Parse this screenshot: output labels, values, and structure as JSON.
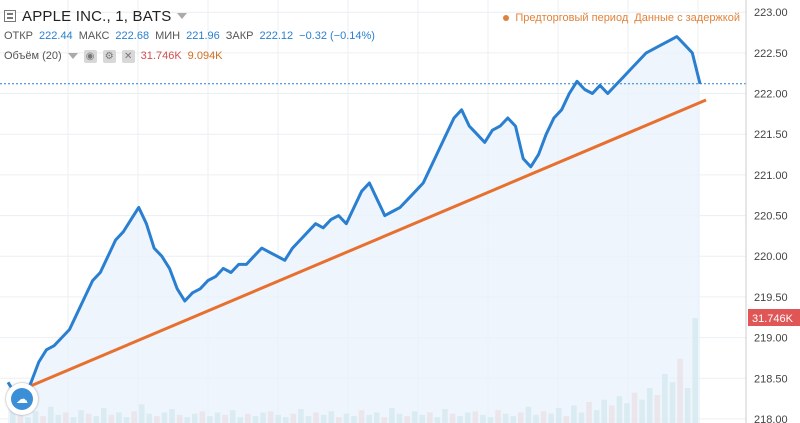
{
  "header": {
    "symbol": "APPLE INC., 1, BATS",
    "open_label": "ОТКР",
    "open": "222.44",
    "high_label": "МАКС",
    "high": "222.68",
    "low_label": "МИН",
    "low": "221.96",
    "close_label": "ЗАКР",
    "close": "222.12",
    "change": "−0.32 (−0.14%)"
  },
  "volume": {
    "label": "Объём (20)",
    "v1": "31.746K",
    "v2": "9.094K"
  },
  "notice": {
    "premarket": "Предторговый период",
    "delayed": "Данные с задержкой"
  },
  "badges": {
    "volume": "31.746K"
  },
  "colors": {
    "price": "#2a7fd0",
    "trend": "#e8702f",
    "grid": "#eceff2",
    "vol_up": "#7fc2c2",
    "vol_down": "#e99a9a"
  },
  "chart_data": {
    "type": "line",
    "title": "APPLE INC., 1, BATS",
    "y_ticks": [
      "223.00",
      "222.50",
      "222.00",
      "221.50",
      "221.00",
      "220.50",
      "220.00",
      "219.50",
      "219.00",
      "218.50",
      "218.00"
    ],
    "ylim": [
      217.95,
      223.15
    ],
    "series": [
      {
        "values": [
          218.45,
          218.3,
          218.25,
          218.45,
          218.7,
          218.85,
          218.9,
          219.0,
          219.1,
          219.3,
          219.5,
          219.7,
          219.8,
          220.0,
          220.2,
          220.3,
          220.45,
          220.6,
          220.4,
          220.1,
          220.0,
          219.85,
          219.6,
          219.45,
          219.55,
          219.6,
          219.7,
          219.75,
          219.85,
          219.8,
          219.9,
          219.9,
          220.0,
          220.1,
          220.05,
          220.0,
          219.95,
          220.1,
          220.2,
          220.3,
          220.4,
          220.35,
          220.45,
          220.5,
          220.4,
          220.6,
          220.8,
          220.9,
          220.7,
          220.5,
          220.55,
          220.6,
          220.7,
          220.8,
          220.9,
          221.1,
          221.3,
          221.5,
          221.7,
          221.8,
          221.6,
          221.5,
          221.4,
          221.55,
          221.6,
          221.7,
          221.6,
          221.2,
          221.1,
          221.25,
          221.5,
          221.7,
          221.8,
          222.0,
          222.15,
          222.05,
          222.0,
          222.1,
          222.0,
          222.1,
          222.2,
          222.3,
          222.4,
          222.5,
          222.55,
          222.6,
          222.65,
          222.7,
          222.6,
          222.5,
          222.12
        ]
      }
    ],
    "trend_start": 218.35,
    "trend_end": 221.92,
    "current_price": 222.12,
    "volume_values": [
      1.2,
      0.8,
      0.5,
      1.0,
      0.6,
      1.4,
      0.7,
      0.9,
      0.5,
      1.1,
      0.8,
      0.6,
      1.3,
      0.7,
      0.9,
      0.5,
      1.0,
      1.6,
      0.8,
      0.6,
      0.9,
      1.2,
      0.7,
      0.5,
      0.8,
      1.0,
      0.6,
      0.9,
      0.7,
      1.1,
      0.5,
      0.8,
      0.6,
      0.9,
      1.0,
      0.7,
      0.5,
      0.8,
      1.2,
      0.6,
      0.9,
      0.7,
      1.0,
      0.5,
      0.8,
      0.6,
      1.1,
      0.7,
      0.9,
      0.5,
      1.3,
      0.8,
      0.6,
      1.0,
      0.7,
      0.9,
      0.5,
      1.2,
      0.8,
      0.6,
      0.9,
      1.0,
      0.7,
      0.5,
      1.1,
      0.8,
      0.6,
      0.9,
      1.4,
      0.7,
      1.0,
      0.8,
      1.3,
      0.6,
      1.5,
      0.9,
      1.8,
      1.1,
      2.0,
      1.5,
      2.3,
      1.7,
      2.6,
      2.0,
      3.0,
      2.4,
      4.2,
      3.5,
      5.5,
      3.0,
      9.0
    ]
  }
}
